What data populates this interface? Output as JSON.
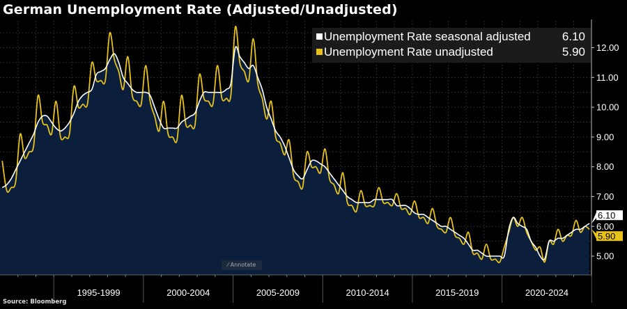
{
  "title": "German Unemployment Rate (Adjusted/Unadjusted)",
  "source": "Source: Bloomberg",
  "annotate_label": "Annotate",
  "legend": [
    {
      "label": "Unemployment Rate seasonal adjusted",
      "value": "6.10",
      "color": "#ffffff"
    },
    {
      "label": "Unemployment Rate unadjusted",
      "value": "5.90",
      "color": "#e6c21a"
    }
  ],
  "colors": {
    "background": "#000000",
    "fill": "#0b1f3c",
    "adjusted": "#ffffff",
    "unadjusted": "#e6c21a",
    "grid": "#3a3a3a"
  },
  "chart_data": {
    "type": "line",
    "title": "German Unemployment Rate (Adjusted/Unadjusted)",
    "xlabel": "",
    "ylabel": "",
    "x_range": [
      "1992-01",
      "2024-12"
    ],
    "ylim": [
      4.37,
      12.9
    ],
    "y_ticks": [
      "5.00",
      "6.00",
      "7.00",
      "8.00",
      "9.00",
      "10.00",
      "11.00",
      "12.00"
    ],
    "x_tick_labels": [
      "1995-1999",
      "2000-2004",
      "2005-2009",
      "2010-2014",
      "2015-2019",
      "2020-2024"
    ],
    "y_axis_side": "right",
    "grid": true,
    "legend_placement": "top-right",
    "last_values": {
      "adjusted": "6.10",
      "unadjusted": "5.90"
    },
    "series": [
      {
        "name": "Unemployment Rate seasonal adjusted",
        "key": "adjusted",
        "area_fill": true
      },
      {
        "name": "Unemployment Rate unadjusted",
        "key": "unadjusted",
        "area_fill": false
      }
    ],
    "quarterly": [
      {
        "year": 1992,
        "adjusted": [
          7.3,
          7.4,
          7.6,
          7.9
        ],
        "unadjusted": [
          8.2,
          7.2,
          7.3,
          7.5
        ]
      },
      {
        "year": 1993,
        "adjusted": [
          8.2,
          8.5,
          8.8,
          9.1
        ],
        "unadjusted": [
          9.1,
          8.3,
          8.5,
          8.7
        ]
      },
      {
        "year": 1994,
        "adjusted": [
          9.5,
          9.7,
          9.7,
          9.5
        ],
        "unadjusted": [
          10.4,
          9.5,
          9.4,
          9.1
        ]
      },
      {
        "year": 1995,
        "adjusted": [
          9.3,
          9.2,
          9.3,
          9.5
        ],
        "unadjusted": [
          10.2,
          9.0,
          9.0,
          9.1
        ]
      },
      {
        "year": 1996,
        "adjusted": [
          9.8,
          10.2,
          10.4,
          10.5
        ],
        "unadjusted": [
          10.7,
          10.0,
          10.1,
          10.1
        ]
      },
      {
        "year": 1997,
        "adjusted": [
          10.6,
          11.1,
          11.2,
          11.3
        ],
        "unadjusted": [
          11.5,
          10.9,
          10.9,
          10.9
        ]
      },
      {
        "year": 1998,
        "adjusted": [
          11.6,
          11.8,
          11.5,
          11.0
        ],
        "unadjusted": [
          12.5,
          11.6,
          11.2,
          10.6
        ]
      },
      {
        "year": 1999,
        "adjusted": [
          10.8,
          10.6,
          10.5,
          10.5
        ],
        "unadjusted": [
          11.7,
          10.4,
          10.2,
          10.1
        ]
      },
      {
        "year": 2000,
        "adjusted": [
          10.5,
          10.4,
          10.0,
          9.6
        ],
        "unadjusted": [
          11.4,
          10.2,
          9.7,
          9.2
        ]
      },
      {
        "year": 2001,
        "adjusted": [
          9.3,
          9.3,
          9.3,
          9.3
        ],
        "unadjusted": [
          10.2,
          9.1,
          9.0,
          8.9
        ]
      },
      {
        "year": 2002,
        "adjusted": [
          9.5,
          9.6,
          9.7,
          9.8
        ],
        "unadjusted": [
          10.4,
          9.4,
          9.4,
          9.4
        ]
      },
      {
        "year": 2003,
        "adjusted": [
          10.2,
          10.5,
          10.5,
          10.5
        ],
        "unadjusted": [
          11.1,
          10.3,
          10.2,
          10.1
        ]
      },
      {
        "year": 2004,
        "adjusted": [
          10.5,
          10.5,
          10.6,
          10.8
        ],
        "unadjusted": [
          11.4,
          10.3,
          10.3,
          10.4
        ]
      },
      {
        "year": 2005,
        "adjusted": [
          12.0,
          11.7,
          11.5,
          11.3
        ],
        "unadjusted": [
          12.7,
          11.5,
          11.2,
          10.9
        ]
      },
      {
        "year": 2006,
        "adjusted": [
          11.4,
          11.0,
          10.6,
          10.0
        ],
        "unadjusted": [
          12.3,
          10.8,
          10.3,
          9.6
        ]
      },
      {
        "year": 2007,
        "adjusted": [
          9.6,
          9.2,
          9.0,
          8.7
        ],
        "unadjusted": [
          10.2,
          9.0,
          8.8,
          8.4
        ]
      },
      {
        "year": 2008,
        "adjusted": [
          8.3,
          7.9,
          7.7,
          7.6
        ],
        "unadjusted": [
          8.9,
          7.7,
          7.5,
          7.3
        ]
      },
      {
        "year": 2009,
        "adjusted": [
          7.9,
          8.2,
          8.2,
          8.1
        ],
        "unadjusted": [
          8.5,
          8.0,
          8.0,
          7.8
        ]
      },
      {
        "year": 2010,
        "adjusted": [
          8.0,
          7.8,
          7.6,
          7.4
        ],
        "unadjusted": [
          8.6,
          7.6,
          7.4,
          7.1
        ]
      },
      {
        "year": 2011,
        "adjusted": [
          7.2,
          7.0,
          6.9,
          6.8
        ],
        "unadjusted": [
          7.8,
          6.8,
          6.7,
          6.5
        ]
      },
      {
        "year": 2012,
        "adjusted": [
          6.8,
          6.8,
          6.8,
          6.9
        ],
        "unadjusted": [
          7.2,
          6.7,
          6.7,
          6.7
        ]
      },
      {
        "year": 2013,
        "adjusted": [
          6.9,
          6.9,
          6.9,
          6.9
        ],
        "unadjusted": [
          7.3,
          6.8,
          6.8,
          6.7
        ]
      },
      {
        "year": 2014,
        "adjusted": [
          6.7,
          6.7,
          6.7,
          6.6
        ],
        "unadjusted": [
          7.1,
          6.6,
          6.6,
          6.4
        ]
      },
      {
        "year": 2015,
        "adjusted": [
          6.45,
          6.4,
          6.4,
          6.3
        ],
        "unadjusted": [
          6.85,
          6.3,
          6.3,
          6.1
        ]
      },
      {
        "year": 2016,
        "adjusted": [
          6.2,
          6.1,
          6.0,
          6.0
        ],
        "unadjusted": [
          6.6,
          6.0,
          5.9,
          5.8
        ]
      },
      {
        "year": 2017,
        "adjusted": [
          5.9,
          5.8,
          5.7,
          5.6
        ],
        "unadjusted": [
          6.3,
          5.7,
          5.6,
          5.4
        ]
      },
      {
        "year": 2018,
        "adjusted": [
          5.4,
          5.2,
          5.2,
          5.1
        ],
        "unadjusted": [
          5.8,
          5.1,
          5.1,
          4.9
        ]
      },
      {
        "year": 2019,
        "adjusted": [
          5.0,
          5.0,
          5.0,
          5.0
        ],
        "unadjusted": [
          5.4,
          4.9,
          4.9,
          4.8
        ]
      },
      {
        "year": 2020,
        "adjusted": [
          5.0,
          5.9,
          6.3,
          6.1
        ],
        "unadjusted": [
          5.3,
          5.8,
          6.3,
          6.0
        ]
      },
      {
        "year": 2021,
        "adjusted": [
          6.0,
          5.9,
          5.5,
          5.3
        ],
        "unadjusted": [
          6.3,
          5.8,
          5.5,
          5.2
        ]
      },
      {
        "year": 2022,
        "adjusted": [
          5.0,
          4.9,
          5.5,
          5.5
        ],
        "unadjusted": [
          5.3,
          4.8,
          5.5,
          5.4
        ]
      },
      {
        "year": 2023,
        "adjusted": [
          5.6,
          5.6,
          5.7,
          5.8
        ],
        "unadjusted": [
          5.9,
          5.5,
          5.7,
          5.7
        ]
      },
      {
        "year": 2024,
        "adjusted": [
          5.9,
          5.9,
          6.0,
          6.1
        ],
        "unadjusted": [
          6.2,
          5.8,
          6.0,
          5.9
        ]
      }
    ]
  }
}
